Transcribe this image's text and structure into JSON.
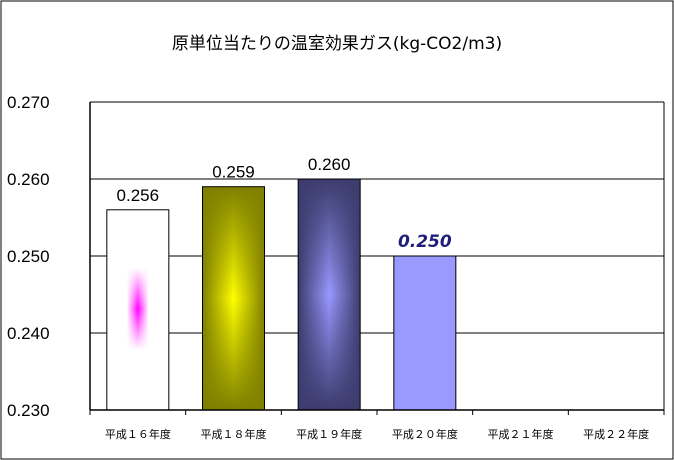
{
  "chart_data": {
    "type": "bar",
    "title": "原単位当たりの温室効果ガス(kg-CO2/m3)",
    "categories": [
      "平成１６年度",
      "平成１８年度",
      "平成１９年度",
      "平成２０年度",
      "平成２１年度",
      "平成２２年度"
    ],
    "values": [
      0.256,
      0.259,
      0.26,
      0.25,
      null,
      null
    ],
    "value_labels": [
      "0.256",
      "0.259",
      "0.260",
      "0.250",
      "",
      ""
    ],
    "highlighted_label_index": 3,
    "ylim": [
      0.23,
      0.27
    ],
    "yticks": [
      "0.230",
      "0.240",
      "0.250",
      "0.260",
      "0.270"
    ],
    "grid": true,
    "bar_styles": [
      {
        "fill": "#ffffff",
        "accent": "#ff00ff"
      },
      {
        "fill": "#808000",
        "accent": "#ffff00"
      },
      {
        "fill": "#3c3c6e",
        "accent": "#9999ff"
      },
      {
        "fill": "#9999ff"
      },
      {},
      {}
    ]
  }
}
